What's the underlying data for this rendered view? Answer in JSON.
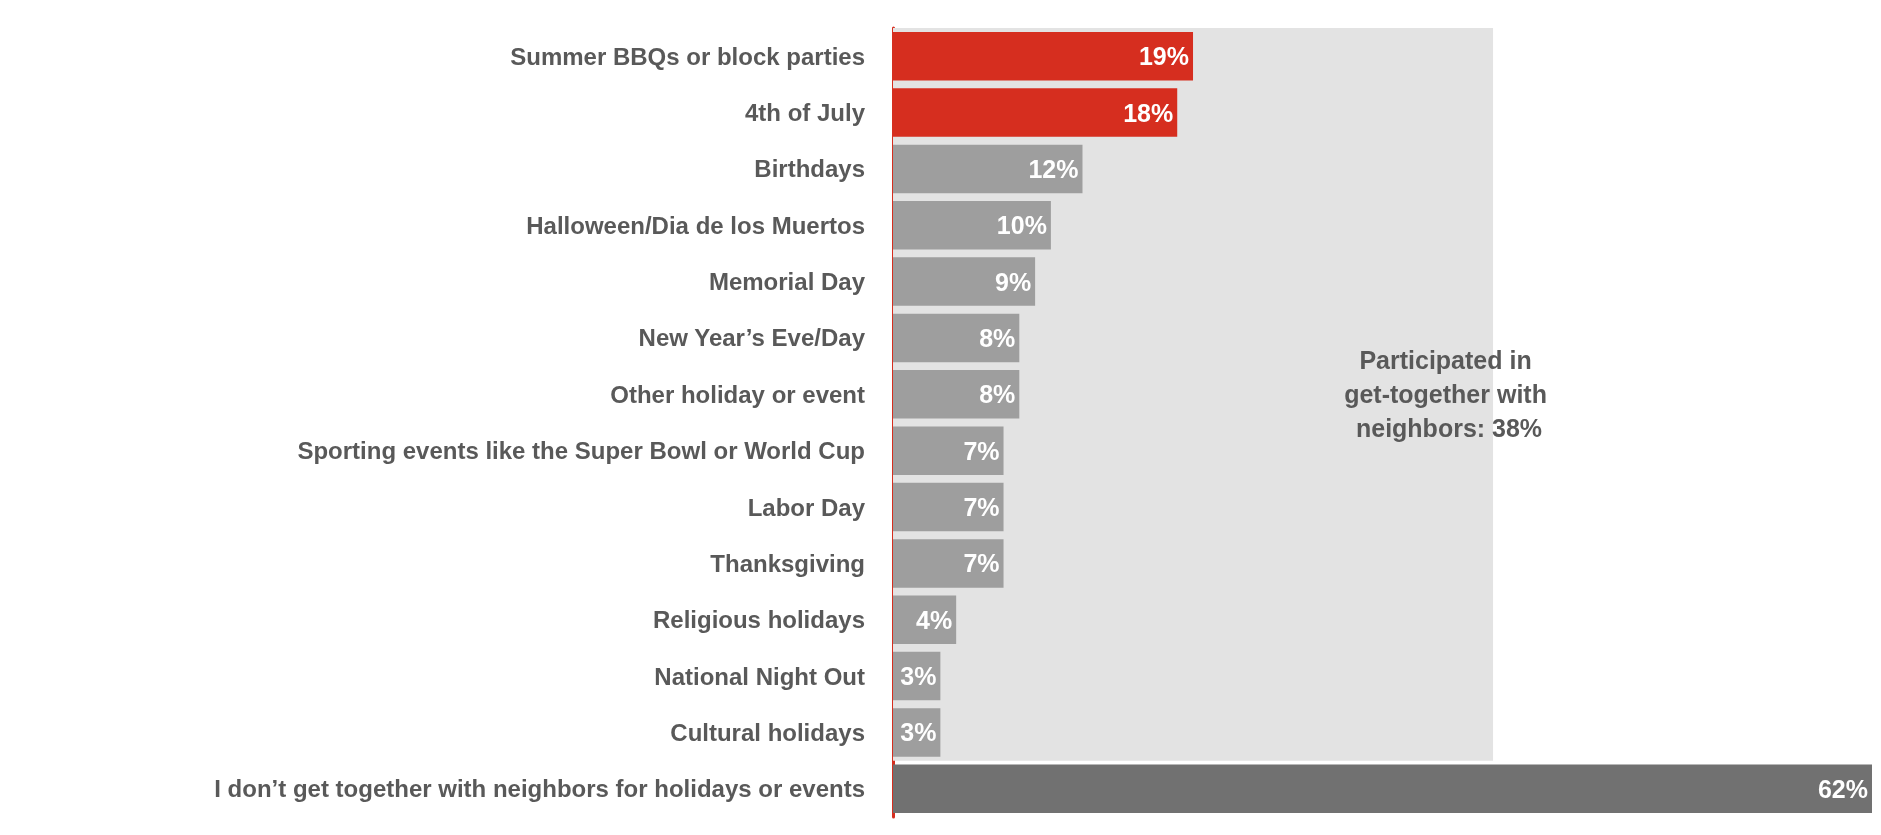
{
  "chart_data": {
    "type": "bar",
    "orientation": "horizontal",
    "data_labels": true,
    "value_labels": [
      "19%",
      "18%",
      "12%",
      "10%",
      "9%",
      "8%",
      "8%",
      "7%",
      "7%",
      "7%",
      "4%",
      "3%",
      "3%",
      "62%"
    ],
    "categories": [
      "Summer BBQs or block parties",
      "4th of July",
      "Birthdays",
      "Halloween/Dia de los Muertos",
      "Memorial Day",
      "New Year’s Eve/Day",
      "Other holiday or event",
      "Sporting events like the Super Bowl or World Cup",
      "Labor Day",
      "Thanksgiving",
      "Religious holidays",
      "National Night Out",
      "Cultural holidays",
      "I don’t get together with neighbors for holidays or events"
    ],
    "values": [
      19,
      18,
      12,
      10,
      9,
      8,
      8,
      7,
      7,
      7,
      4,
      3,
      3,
      62
    ],
    "colors": [
      "#d62e1f",
      "#d62e1f",
      "#9e9e9e",
      "#9e9e9e",
      "#9e9e9e",
      "#9e9e9e",
      "#9e9e9e",
      "#9e9e9e",
      "#9e9e9e",
      "#9e9e9e",
      "#9e9e9e",
      "#9e9e9e",
      "#9e9e9e",
      "#717171"
    ],
    "bands": [
      {
        "axis": "x",
        "from": 0,
        "to": 38,
        "label": "Participated in get-together with neighbors: 38%",
        "color": "#e3e3e3"
      }
    ]
  }
}
